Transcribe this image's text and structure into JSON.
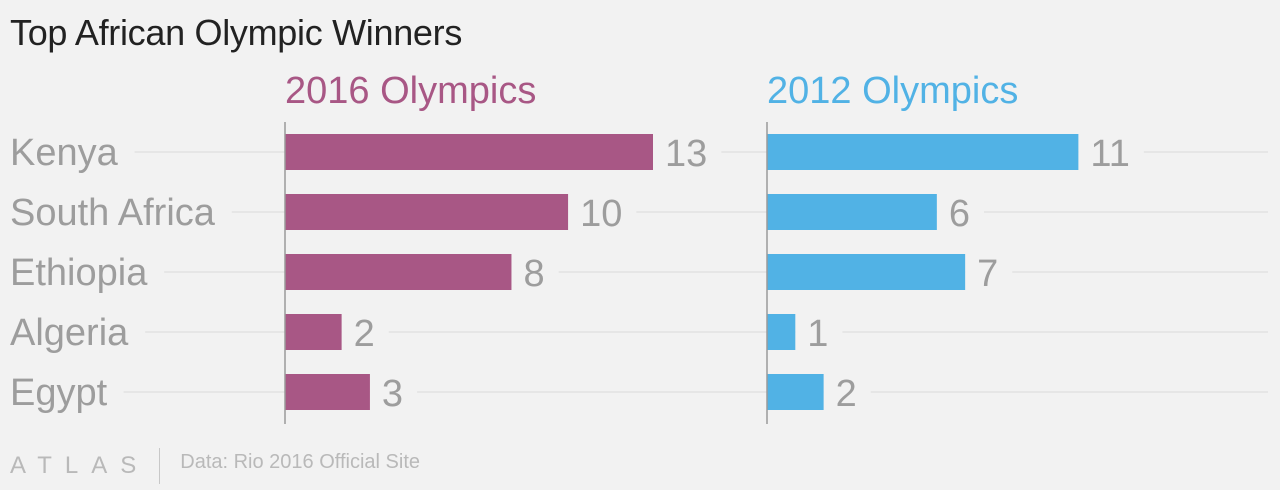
{
  "title": "Top African Olympic Winners",
  "footer": {
    "brand": "ATLAS",
    "source": "Data: Rio 2016 Official Site"
  },
  "chart_data": {
    "type": "bar",
    "orientation": "horizontal",
    "layout": "small-multiples",
    "categories": [
      "Kenya",
      "South Africa",
      "Ethiopia",
      "Algeria",
      "Egypt"
    ],
    "series": [
      {
        "name": "2016 Olympics",
        "color": "#a85785",
        "values": [
          13,
          10,
          8,
          2,
          3
        ]
      },
      {
        "name": "2012 Olympics",
        "color": "#51b2e5",
        "values": [
          11,
          6,
          7,
          1,
          2
        ]
      }
    ],
    "xlim": [
      0,
      13
    ],
    "grid": true,
    "data_labels": true
  }
}
